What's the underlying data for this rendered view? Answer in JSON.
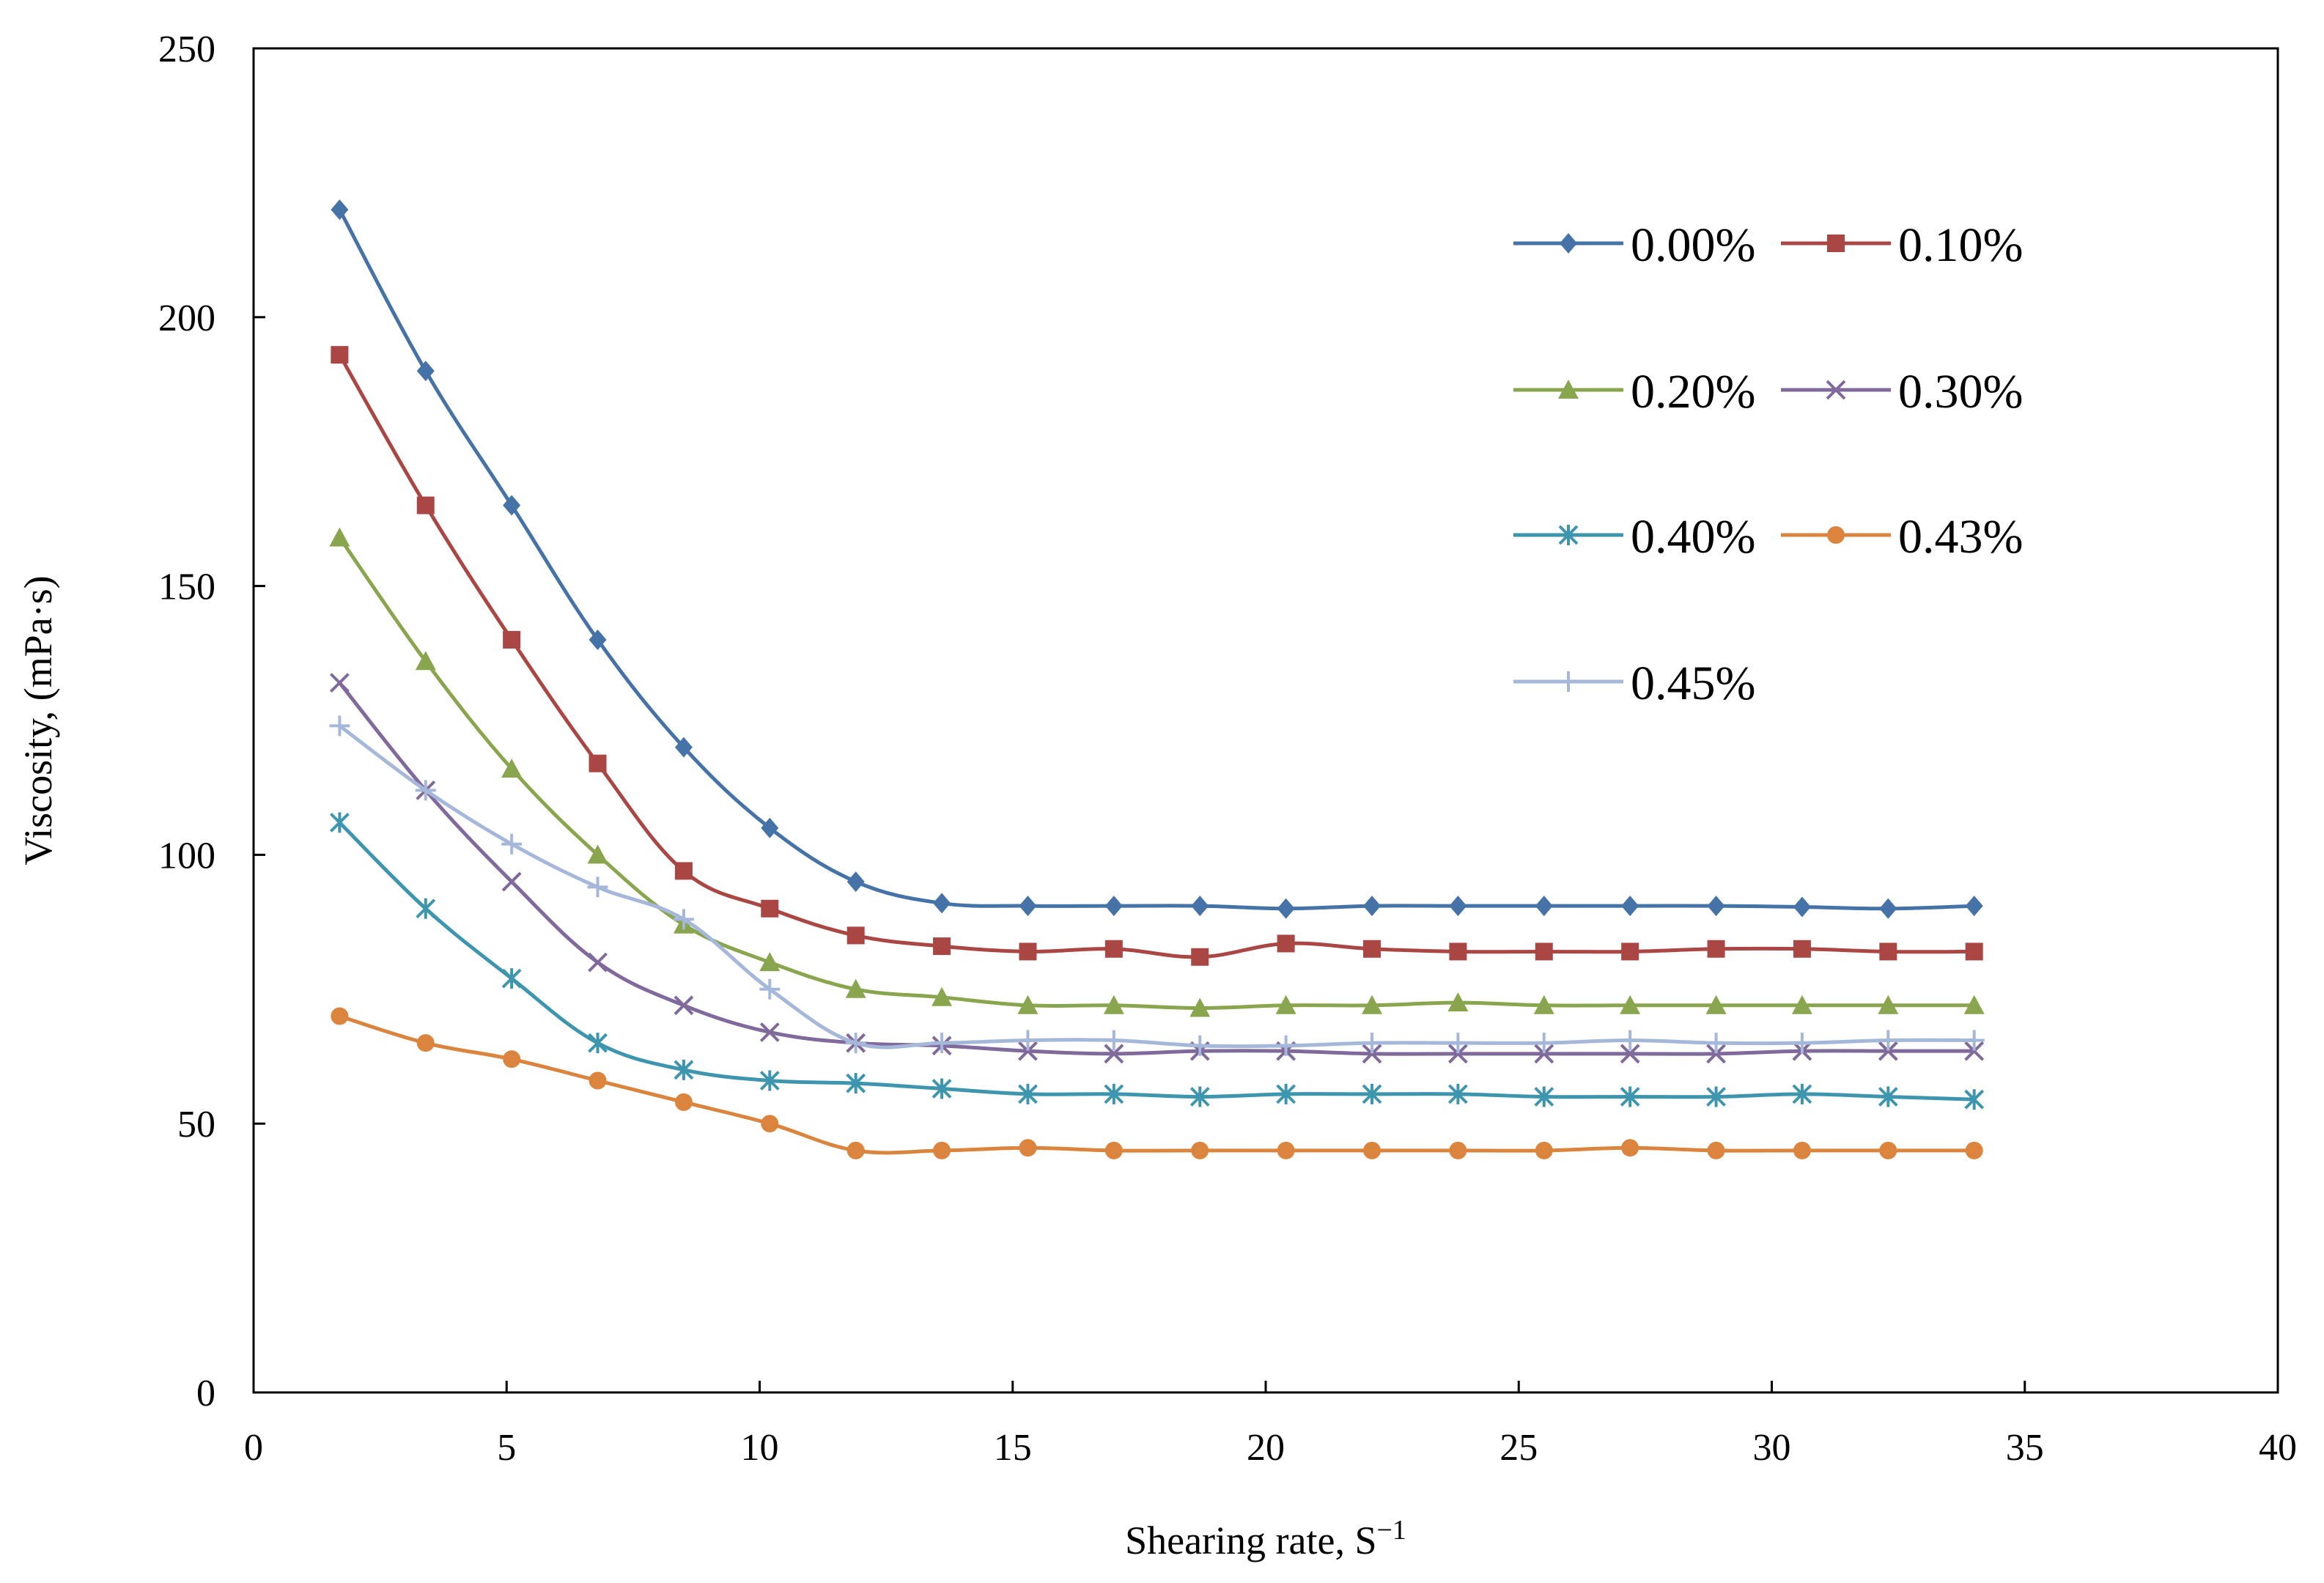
{
  "chart_data": {
    "type": "line",
    "title": "",
    "xlabel": "Shearing rate, S",
    "xlabel_sup": "−1",
    "ylabel": "Viscosity, (mPa·s)",
    "xlim": [
      0,
      40
    ],
    "ylim": [
      0,
      250
    ],
    "xticks": [
      "0",
      "5",
      "10",
      "15",
      "20",
      "25",
      "30",
      "35",
      "40"
    ],
    "yticks": [
      "0",
      "50",
      "100",
      "150",
      "200",
      "250"
    ],
    "grid": false,
    "legend_position": "top-right",
    "x": [
      1.7,
      3.4,
      5.1,
      6.8,
      8.5,
      10.2,
      11.9,
      13.6,
      15.3,
      17.0,
      18.7,
      20.4,
      22.1,
      23.8,
      25.5,
      27.2,
      28.9,
      30.6,
      32.3,
      34.0
    ],
    "series": [
      {
        "name": "0.00%",
        "color": "#4572A7",
        "marker": "diamond",
        "values": [
          220,
          190,
          165,
          140,
          120,
          105,
          95,
          91,
          90.5,
          90.5,
          90.5,
          90,
          90.5,
          90.5,
          90.5,
          90.5,
          90.5,
          90.3,
          90,
          90.5
        ]
      },
      {
        "name": "0.10%",
        "color": "#AA4643",
        "marker": "square",
        "values": [
          193,
          165,
          140,
          117,
          97,
          90,
          85,
          83,
          82,
          82.5,
          81,
          83.5,
          82.5,
          82,
          82,
          82,
          82.5,
          82.5,
          82,
          82
        ]
      },
      {
        "name": "0.20%",
        "color": "#89A54E",
        "marker": "triangle",
        "values": [
          159,
          136,
          116,
          100,
          87,
          80,
          75,
          73.5,
          72,
          72,
          71.5,
          72,
          72,
          72.5,
          72,
          72,
          72,
          72,
          72,
          72
        ]
      },
      {
        "name": "0.30%",
        "color": "#80699B",
        "marker": "x",
        "values": [
          132,
          112,
          95,
          80,
          72,
          67,
          65,
          64.5,
          63.5,
          63,
          63.5,
          63.5,
          63,
          63,
          63,
          63,
          63,
          63.5,
          63.5,
          63.5
        ]
      },
      {
        "name": "0.40%",
        "color": "#3D96AE",
        "marker": "asterisk",
        "values": [
          106,
          90,
          77,
          65,
          60,
          58,
          57.5,
          56.5,
          55.5,
          55.5,
          55,
          55.5,
          55.5,
          55.5,
          55,
          55,
          55,
          55.5,
          55,
          54.5
        ]
      },
      {
        "name": "0.43%",
        "color": "#DB843D",
        "marker": "circle",
        "values": [
          70,
          65,
          62,
          58,
          54,
          50,
          45,
          45,
          45.5,
          45,
          45,
          45,
          45,
          45,
          45,
          45.5,
          45,
          45,
          45,
          45
        ]
      },
      {
        "name": "0.45%",
        "color": "#A6B8DA",
        "marker": "plus",
        "values": [
          124,
          112,
          102,
          94,
          88,
          75,
          65,
          65,
          65.5,
          65.5,
          64.5,
          64.5,
          65,
          65,
          65,
          65.5,
          65,
          65,
          65.5,
          65.5
        ]
      }
    ]
  }
}
